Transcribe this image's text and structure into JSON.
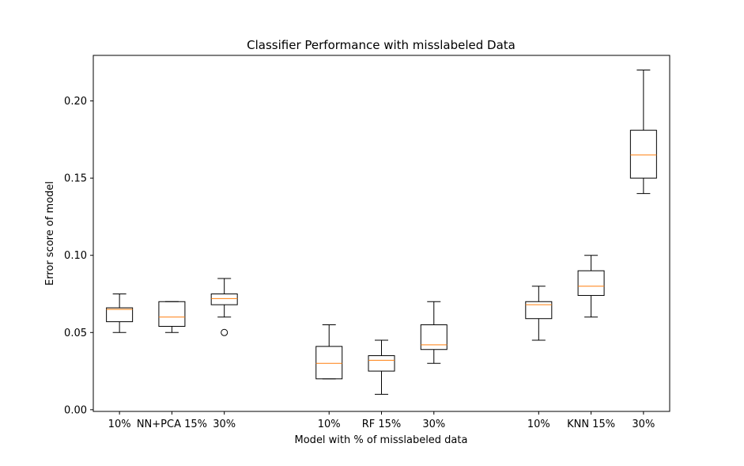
{
  "chart_data": {
    "type": "box",
    "title": "Classifier Performance with misslabeled Data",
    "xlabel": "Model with % of misslabeled data",
    "ylabel": "Error score of model",
    "ylim": [
      -0.0011,
      0.2295
    ],
    "yticks": [
      0.0,
      0.05,
      0.1,
      0.15,
      0.2
    ],
    "ytick_labels": [
      "0.00",
      "0.05",
      "0.10",
      "0.15",
      "0.20"
    ],
    "grid": false,
    "median_color": "#ff7f0e",
    "box_color": "#000000",
    "boxes": [
      {
        "label": "10%",
        "position": 1,
        "whislo": 0.05,
        "q1": 0.057,
        "med": 0.065,
        "q3": 0.066,
        "whishi": 0.075,
        "fliers": []
      },
      {
        "label": "NN+PCA 15%",
        "position": 2,
        "whislo": 0.05,
        "q1": 0.054,
        "med": 0.06,
        "q3": 0.07,
        "whishi": 0.07,
        "fliers": []
      },
      {
        "label": "30%",
        "position": 3,
        "whislo": 0.06,
        "q1": 0.068,
        "med": 0.072,
        "q3": 0.075,
        "whishi": 0.085,
        "fliers": [
          0.05
        ]
      },
      {
        "label": "10%",
        "position": 5,
        "whislo": 0.02,
        "q1": 0.02,
        "med": 0.03,
        "q3": 0.041,
        "whishi": 0.055,
        "fliers": []
      },
      {
        "label": "RF 15%",
        "position": 6,
        "whislo": 0.01,
        "q1": 0.025,
        "med": 0.032,
        "q3": 0.035,
        "whishi": 0.045,
        "fliers": []
      },
      {
        "label": "30%",
        "position": 7,
        "whislo": 0.03,
        "q1": 0.039,
        "med": 0.042,
        "q3": 0.055,
        "whishi": 0.07,
        "fliers": []
      },
      {
        "label": "10%",
        "position": 9,
        "whislo": 0.045,
        "q1": 0.059,
        "med": 0.068,
        "q3": 0.07,
        "whishi": 0.08,
        "fliers": []
      },
      {
        "label": "KNN 15%",
        "position": 10,
        "whislo": 0.06,
        "q1": 0.074,
        "med": 0.08,
        "q3": 0.09,
        "whishi": 0.1,
        "fliers": []
      },
      {
        "label": "30%",
        "position": 11,
        "whislo": 0.14,
        "q1": 0.15,
        "med": 0.165,
        "q3": 0.181,
        "whishi": 0.22,
        "fliers": []
      }
    ],
    "xlim": [
      0.5,
      11.5
    ]
  }
}
